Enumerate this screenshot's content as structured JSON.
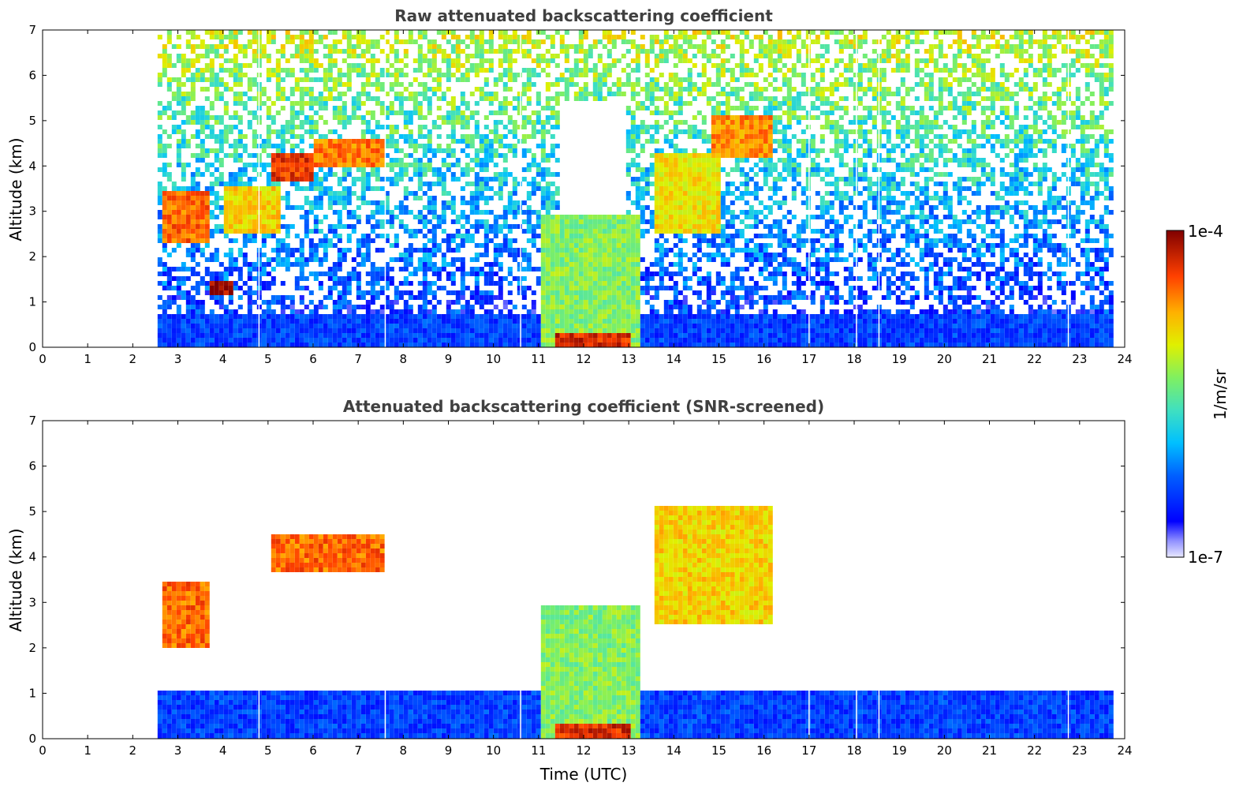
{
  "chart_data": [
    {
      "type": "heatmap",
      "title": "Raw attenuated backscattering coefficient",
      "xlabel": "",
      "ylabel": "Altitude (km)",
      "xlim": [
        0,
        24
      ],
      "ylim": [
        0,
        7
      ],
      "xticks": [
        "0",
        "1",
        "2",
        "3",
        "4",
        "5",
        "6",
        "7",
        "8",
        "9",
        "10",
        "11",
        "12",
        "13",
        "14",
        "15",
        "16",
        "17",
        "18",
        "19",
        "20",
        "21",
        "22",
        "23",
        "24"
      ],
      "yticks": [
        "0",
        "1",
        "2",
        "3",
        "4",
        "5",
        "6",
        "7"
      ],
      "data_coverage_hours": [
        2.55,
        23.65
      ],
      "features": [
        {
          "name": "boundary layer",
          "time": [
            2.55,
            23.65
          ],
          "altitude_km": [
            0,
            0.8
          ],
          "level": 0.2
        },
        {
          "name": "convective plume",
          "time": [
            11.0,
            13.2
          ],
          "altitude_km": [
            0,
            3.0
          ],
          "level": 0.55
        },
        {
          "name": "plume core",
          "time": [
            11.3,
            13.0
          ],
          "altitude_km": [
            0,
            0.4
          ],
          "level": 0.9
        },
        {
          "name": "cloud layer A",
          "time": [
            2.6,
            3.6
          ],
          "altitude_km": [
            2.3,
            3.5
          ],
          "level": 0.82
        },
        {
          "name": "cloud layer B",
          "time": [
            4.0,
            5.2
          ],
          "altitude_km": [
            2.6,
            3.6
          ],
          "level": 0.7
        },
        {
          "name": "cloud layer C",
          "time": [
            5.0,
            6.0
          ],
          "altitude_km": [
            3.7,
            4.3
          ],
          "level": 0.88
        },
        {
          "name": "cloud layer D",
          "time": [
            6.0,
            7.5
          ],
          "altitude_km": [
            4.0,
            4.6
          ],
          "level": 0.8
        },
        {
          "name": "cloud layer E",
          "time": [
            13.5,
            15.0
          ],
          "altitude_km": [
            2.6,
            4.3
          ],
          "level": 0.68
        },
        {
          "name": "cloud layer F",
          "time": [
            14.8,
            16.1
          ],
          "altitude_km": [
            4.2,
            5.2
          ],
          "level": 0.78
        },
        {
          "name": "thin layer",
          "time": [
            3.6,
            4.2
          ],
          "altitude_km": [
            1.2,
            1.5
          ],
          "level": 0.97
        }
      ]
    },
    {
      "type": "heatmap",
      "title": "Attenuated backscattering coefficient (SNR-screened)",
      "xlabel": "Time (UTC)",
      "ylabel": "Altitude (km)",
      "xlim": [
        0,
        24
      ],
      "ylim": [
        0,
        7
      ],
      "xticks": [
        "0",
        "1",
        "2",
        "3",
        "4",
        "5",
        "6",
        "7",
        "8",
        "9",
        "10",
        "11",
        "12",
        "13",
        "14",
        "15",
        "16",
        "17",
        "18",
        "19",
        "20",
        "21",
        "22",
        "23",
        "24"
      ],
      "yticks": [
        "0",
        "1",
        "2",
        "3",
        "4",
        "5",
        "6",
        "7"
      ],
      "data_coverage_hours": [
        2.55,
        23.65
      ],
      "features": [
        {
          "name": "boundary layer",
          "time": [
            2.55,
            23.65
          ],
          "altitude_km": [
            0,
            1.1
          ],
          "level": 0.2
        },
        {
          "name": "convective plume",
          "time": [
            11.0,
            13.2
          ],
          "altitude_km": [
            0,
            3.0
          ],
          "level": 0.55
        },
        {
          "name": "plume core",
          "time": [
            11.3,
            13.0
          ],
          "altitude_km": [
            0,
            0.4
          ],
          "level": 0.9
        },
        {
          "name": "cloud layer A",
          "time": [
            2.6,
            3.6
          ],
          "altitude_km": [
            2.0,
            3.5
          ],
          "level": 0.82
        },
        {
          "name": "cloud layer C",
          "time": [
            5.0,
            7.5
          ],
          "altitude_km": [
            3.7,
            4.6
          ],
          "level": 0.82
        },
        {
          "name": "cloud layer E",
          "time": [
            13.5,
            16.1
          ],
          "altitude_km": [
            2.6,
            5.2
          ],
          "level": 0.7
        }
      ]
    }
  ],
  "colorbar": {
    "label": "1/m/sr",
    "min_label": "1e-7",
    "max_label": "1e-4",
    "colormap": "jet"
  },
  "colors": {
    "title": "#404040",
    "background": "#ffffff",
    "cloud": "#ff3000",
    "noise": "#c9e85a"
  }
}
